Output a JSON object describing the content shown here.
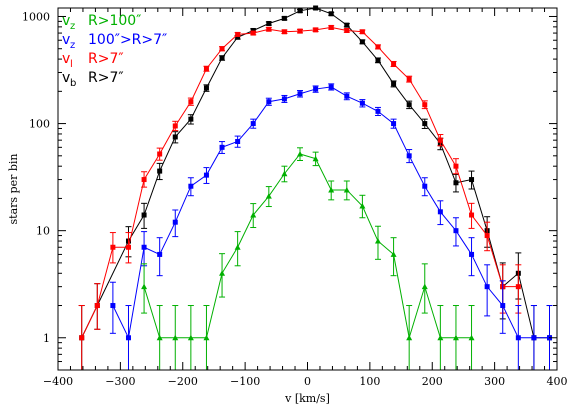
{
  "chart_data": {
    "type": "line",
    "xlabel": "v [km/s]",
    "ylabel": "stars per bin",
    "xlim": [
      -400,
      400
    ],
    "ylim": [
      0.5,
      1200
    ],
    "yscale": "log",
    "x_ticks": [
      -400,
      -300,
      -200,
      -100,
      0,
      100,
      200,
      300,
      400
    ],
    "x_tick_labels": [
      "−400",
      "−300",
      "−200",
      "−100",
      "0",
      "100",
      "200",
      "300",
      "400"
    ],
    "y_ticks": [
      1,
      10,
      100,
      1000
    ],
    "y_tick_labels": [
      "1",
      "10",
      "100",
      "1000"
    ],
    "grid": false,
    "legend_position": "top-left",
    "series": [
      {
        "name": "v_b R>7″",
        "legend_symbol": "v",
        "legend_subscript": "b",
        "legend_text": "R>7″",
        "color": "#000000",
        "marker": "square",
        "x": [
          -362,
          -337,
          -287,
          -262,
          -237,
          -212,
          -187,
          -162,
          -137,
          -112,
          -87,
          -62,
          -37,
          -12,
          13,
          38,
          63,
          88,
          113,
          138,
          163,
          188,
          213,
          238,
          263,
          288,
          313,
          338,
          363,
          388
        ],
        "y": [
          1,
          2,
          8,
          14,
          36,
          75,
          110,
          215,
          410,
          640,
          740,
          860,
          960,
          1130,
          1200,
          1060,
          830,
          580,
          390,
          235,
          150,
          100,
          65,
          28,
          30,
          10,
          3,
          4,
          1,
          1
        ],
        "err_lo": [
          0.5,
          0.8,
          2.3,
          3.5,
          6,
          9,
          11,
          15,
          20,
          25,
          27,
          29,
          31,
          33,
          35,
          33,
          29,
          24,
          20,
          15,
          12,
          10,
          8,
          5,
          5.5,
          3,
          1.5,
          1.7,
          0.5,
          0.5
        ],
        "err_hi": [
          1,
          1.2,
          2.9,
          4,
          6.5,
          9,
          11,
          15,
          20,
          25,
          27,
          29,
          31,
          33,
          35,
          33,
          29,
          24,
          20,
          15,
          12,
          10,
          8,
          5.5,
          6,
          3.5,
          2,
          2.2,
          1,
          1
        ]
      },
      {
        "name": "v_l R>7″",
        "legend_symbol": "v",
        "legend_subscript": "l",
        "legend_text": "R>7″",
        "color": "#ff0000",
        "marker": "square",
        "x": [
          -362,
          -337,
          -312,
          -287,
          -262,
          -237,
          -212,
          -187,
          -162,
          -137,
          -112,
          -87,
          -62,
          -37,
          -12,
          13,
          38,
          63,
          88,
          113,
          138,
          163,
          188,
          213,
          238,
          263,
          288,
          313,
          338
        ],
        "y": [
          1,
          2,
          7,
          7,
          30,
          52,
          95,
          160,
          325,
          500,
          680,
          700,
          760,
          720,
          730,
          750,
          790,
          740,
          720,
          520,
          360,
          260,
          150,
          70,
          40,
          14,
          9,
          3,
          3
        ],
        "err_lo": [
          0.5,
          0.8,
          2,
          2,
          4.5,
          6.5,
          9,
          12,
          17,
          22,
          26,
          26,
          27,
          26,
          27,
          27,
          28,
          27,
          26,
          22,
          19,
          16,
          12,
          8,
          6,
          3.5,
          2.5,
          1.3,
          1.3
        ],
        "err_hi": [
          1,
          1.2,
          2.6,
          2.6,
          5.5,
          7,
          10,
          13,
          18,
          23,
          27,
          27,
          28,
          27,
          28,
          28,
          29,
          28,
          27,
          23,
          20,
          17,
          13,
          9,
          7,
          4,
          3,
          1.8,
          1.8
        ]
      },
      {
        "name": "v_z 100″>R>7″",
        "legend_symbol": "v",
        "legend_subscript": "z",
        "legend_text": "100″>R>7″",
        "color": "#0000ff",
        "marker": "square",
        "x": [
          -312,
          -287,
          -262,
          -237,
          -212,
          -187,
          -162,
          -137,
          -112,
          -87,
          -62,
          -37,
          -12,
          13,
          38,
          63,
          88,
          113,
          138,
          163,
          188,
          213,
          238,
          263,
          288,
          313,
          338,
          363,
          388
        ],
        "y": [
          2,
          1,
          7,
          6,
          12,
          26,
          33,
          60,
          68,
          100,
          160,
          170,
          190,
          210,
          220,
          180,
          155,
          130,
          100,
          50,
          26,
          15,
          10,
          6,
          3,
          2,
          1,
          1,
          1
        ],
        "err_lo": [
          0.9,
          0.5,
          2.3,
          2.2,
          3.2,
          4.8,
          5.4,
          7.4,
          7.9,
          9.5,
          12,
          12.5,
          13,
          14,
          14.3,
          13,
          12,
          11,
          9.5,
          6.8,
          4.8,
          3.6,
          2.8,
          2.2,
          1.4,
          0.9,
          0.5,
          0.5,
          0.5
        ],
        "err_hi": [
          1.3,
          1,
          2.8,
          2.6,
          3.6,
          5.2,
          5.8,
          7.9,
          8.4,
          10,
          12.5,
          13,
          13.5,
          14.5,
          14.8,
          13.5,
          12.5,
          11.5,
          10,
          7.2,
          5.2,
          4,
          3.2,
          2.6,
          1.8,
          1.4,
          1,
          1,
          1
        ]
      },
      {
        "name": "v_z R>100″",
        "legend_symbol": "v",
        "legend_subscript": "z",
        "legend_text": "R>100″",
        "color": "#00b000",
        "marker": "triangle",
        "x": [
          -262,
          -237,
          -212,
          -187,
          -162,
          -137,
          -112,
          -87,
          -62,
          -37,
          -12,
          13,
          38,
          63,
          88,
          113,
          138,
          163,
          188,
          213,
          238,
          263
        ],
        "y": [
          3,
          1,
          1,
          1,
          1,
          4,
          7,
          14,
          21,
          34,
          52,
          47,
          24,
          24,
          17,
          8,
          6,
          1,
          3,
          1,
          1,
          1
        ],
        "err_lo": [
          1.3,
          0.5,
          0.5,
          0.5,
          0.5,
          1.6,
          2.3,
          3.3,
          4.2,
          5.4,
          6.8,
          6.5,
          4.6,
          4.6,
          3.8,
          2.6,
          2.2,
          0.5,
          1.3,
          0.5,
          0.5,
          0.5
        ],
        "err_hi": [
          1.9,
          1,
          1,
          1,
          1,
          2.1,
          2.8,
          3.9,
          4.8,
          6,
          7.4,
          7.1,
          5.1,
          5.1,
          4.4,
          3,
          2.6,
          1,
          1.9,
          1,
          1,
          1
        ]
      }
    ]
  },
  "legend": [
    {
      "symbol": "v",
      "subscript": "z",
      "text": "R>100″",
      "color": "#00b000"
    },
    {
      "symbol": "v",
      "subscript": "z",
      "text": "100″>R>7″",
      "color": "#0000ff"
    },
    {
      "symbol": "v",
      "subscript": "l",
      "text": "R>7″",
      "color": "#ff0000"
    },
    {
      "symbol": "v",
      "subscript": "b",
      "text": "R>7″",
      "color": "#000000"
    }
  ]
}
